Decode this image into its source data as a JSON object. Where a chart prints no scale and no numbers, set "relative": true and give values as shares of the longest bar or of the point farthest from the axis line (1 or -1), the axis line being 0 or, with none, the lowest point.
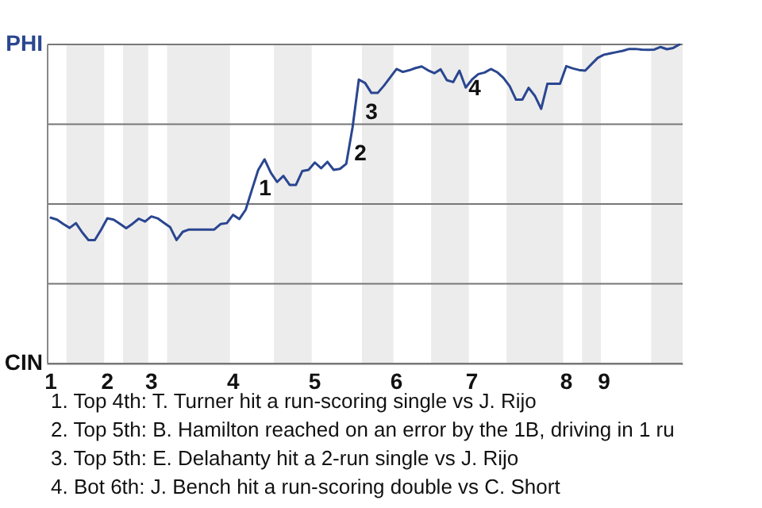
{
  "chart_data": {
    "type": "line",
    "relative": true,
    "categories": [
      "1",
      null,
      null,
      null,
      null,
      null,
      null,
      null,
      null,
      "2",
      null,
      null,
      null,
      null,
      null,
      null,
      "3",
      null,
      null,
      null,
      null,
      null,
      null,
      null,
      null,
      null,
      null,
      null,
      null,
      "4",
      null,
      null,
      null,
      null,
      null,
      null,
      null,
      null,
      null,
      null,
      null,
      null,
      "5",
      null,
      null,
      null,
      null,
      null,
      null,
      null,
      null,
      null,
      null,
      null,
      null,
      "6",
      null,
      null,
      null,
      null,
      null,
      null,
      null,
      null,
      null,
      null,
      null,
      "7",
      null,
      null,
      null,
      null,
      null,
      null,
      null,
      null,
      null,
      null,
      null,
      null,
      null,
      null,
      "8",
      null,
      null,
      null,
      null,
      null,
      "9",
      null,
      null,
      null,
      null,
      null,
      null,
      null,
      null,
      null,
      null,
      null,
      null
    ],
    "series": [
      {
        "color": "#2a4690",
        "values": [
          0.457,
          0.451,
          0.437,
          0.425,
          0.44,
          0.411,
          0.387,
          0.387,
          0.419,
          0.455,
          0.451,
          0.438,
          0.424,
          0.438,
          0.454,
          0.445,
          0.461,
          0.455,
          0.441,
          0.427,
          0.387,
          0.413,
          0.42,
          0.42,
          0.42,
          0.42,
          0.42,
          0.437,
          0.44,
          0.466,
          0.453,
          0.482,
          0.545,
          0.607,
          0.64,
          0.598,
          0.569,
          0.588,
          0.56,
          0.56,
          0.603,
          0.607,
          0.63,
          0.612,
          0.632,
          0.607,
          0.61,
          0.626,
          0.74,
          0.89,
          0.879,
          0.848,
          0.848,
          0.871,
          0.897,
          0.923,
          0.914,
          0.919,
          0.926,
          0.931,
          0.919,
          0.91,
          0.922,
          0.888,
          0.882,
          0.918,
          0.865,
          0.89,
          0.907,
          0.912,
          0.923,
          0.913,
          0.895,
          0.869,
          0.827,
          0.827,
          0.864,
          0.839,
          0.798,
          0.877,
          0.877,
          0.877,
          0.932,
          0.925,
          0.92,
          0.918,
          0.938,
          0.958,
          0.968,
          0.972,
          0.976,
          0.98,
          0.986,
          0.986,
          0.984,
          0.983,
          0.984,
          0.992,
          0.985,
          0.989,
          1
        ]
      }
    ],
    "grid": "y",
    "marker": "none",
    "annotations": [
      "PHI",
      "CIN",
      "1",
      "2",
      "3",
      "4",
      "1. Top 4th: T. Turner hit a run-scoring single vs J. Rijo",
      "2. Top 5th: B. Hamilton reached on an error by the 1B, driving in 1 ru",
      "3. Top 5th: E. Delahanty hit a 2-run single vs J. Rijo",
      "4. Bot 6th: J. Bench hit a run-scoring double vs C. Short"
    ]
  }
}
